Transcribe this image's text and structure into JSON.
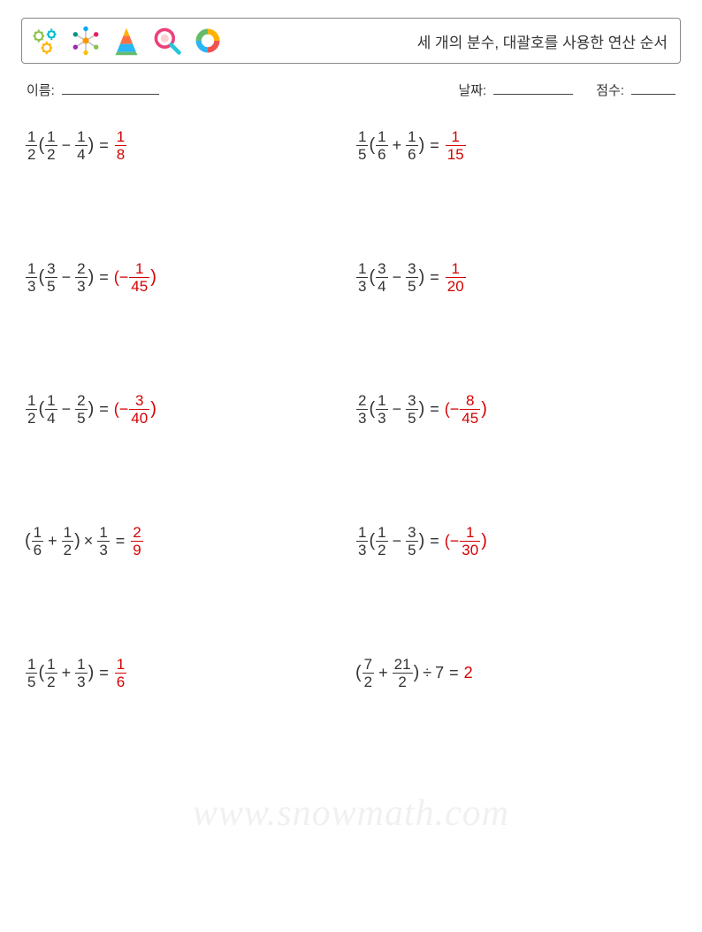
{
  "header": {
    "title": "세 개의 분수, 대괄호를 사용한 연산 순서"
  },
  "meta": {
    "name_label": "이름:",
    "date_label": "날짜:",
    "score_label": "점수:"
  },
  "colors": {
    "text": "#333333",
    "answer": "#d40000",
    "border": "#888888",
    "watermark": "rgba(0,0,0,0.06)"
  },
  "icons": {
    "gears": {
      "c1": "#8bc34a",
      "c2": "#00bcd4",
      "c3": "#ffb300"
    },
    "network": {
      "center": "#ff9800",
      "dots": [
        "#03a9f4",
        "#e91e63",
        "#8bc34a",
        "#ffc107",
        "#9c27b0",
        "#009688"
      ]
    },
    "triangle": {
      "rows": [
        "#ffb300",
        "#ff7043",
        "#29b6f6",
        "#66bb6a"
      ]
    },
    "magnifier": {
      "ring": "#ec407a",
      "handle": "#26c6da"
    },
    "donut": {
      "segs": [
        "#ffb300",
        "#ef5350",
        "#29b6f6",
        "#66bb6a"
      ]
    }
  },
  "problems": [
    [
      {
        "type": "frac",
        "n": "1",
        "d": "2"
      },
      {
        "type": "text",
        "v": "("
      },
      {
        "type": "frac",
        "n": "1",
        "d": "2"
      },
      {
        "type": "op",
        "v": "−"
      },
      {
        "type": "frac",
        "n": "1",
        "d": "4"
      },
      {
        "type": "text",
        "v": ")"
      },
      {
        "type": "eq",
        "v": "="
      },
      {
        "type": "ans",
        "parts": [
          {
            "type": "frac",
            "n": "1",
            "d": "8"
          }
        ]
      }
    ],
    [
      {
        "type": "frac",
        "n": "1",
        "d": "5"
      },
      {
        "type": "text",
        "v": "("
      },
      {
        "type": "frac",
        "n": "1",
        "d": "6"
      },
      {
        "type": "op",
        "v": "+"
      },
      {
        "type": "frac",
        "n": "1",
        "d": "6"
      },
      {
        "type": "text",
        "v": ")"
      },
      {
        "type": "eq",
        "v": "="
      },
      {
        "type": "ans",
        "parts": [
          {
            "type": "frac",
            "n": "1",
            "d": "15"
          }
        ]
      }
    ],
    [
      {
        "type": "frac",
        "n": "1",
        "d": "3"
      },
      {
        "type": "text",
        "v": "("
      },
      {
        "type": "frac",
        "n": "3",
        "d": "5"
      },
      {
        "type": "op",
        "v": "−"
      },
      {
        "type": "frac",
        "n": "2",
        "d": "3"
      },
      {
        "type": "text",
        "v": ")"
      },
      {
        "type": "eq",
        "v": "="
      },
      {
        "type": "ans",
        "parts": [
          {
            "type": "text",
            "v": "(−"
          },
          {
            "type": "frac",
            "n": "1",
            "d": "45"
          },
          {
            "type": "text",
            "v": ")"
          }
        ]
      }
    ],
    [
      {
        "type": "frac",
        "n": "1",
        "d": "3"
      },
      {
        "type": "text",
        "v": "("
      },
      {
        "type": "frac",
        "n": "3",
        "d": "4"
      },
      {
        "type": "op",
        "v": "−"
      },
      {
        "type": "frac",
        "n": "3",
        "d": "5"
      },
      {
        "type": "text",
        "v": ")"
      },
      {
        "type": "eq",
        "v": "="
      },
      {
        "type": "ans",
        "parts": [
          {
            "type": "frac",
            "n": "1",
            "d": "20"
          }
        ]
      }
    ],
    [
      {
        "type": "frac",
        "n": "1",
        "d": "2"
      },
      {
        "type": "text",
        "v": "("
      },
      {
        "type": "frac",
        "n": "1",
        "d": "4"
      },
      {
        "type": "op",
        "v": "−"
      },
      {
        "type": "frac",
        "n": "2",
        "d": "5"
      },
      {
        "type": "text",
        "v": ")"
      },
      {
        "type": "eq",
        "v": "="
      },
      {
        "type": "ans",
        "parts": [
          {
            "type": "text",
            "v": "(−"
          },
          {
            "type": "frac",
            "n": "3",
            "d": "40"
          },
          {
            "type": "text",
            "v": ")"
          }
        ]
      }
    ],
    [
      {
        "type": "frac",
        "n": "2",
        "d": "3"
      },
      {
        "type": "text",
        "v": "("
      },
      {
        "type": "frac",
        "n": "1",
        "d": "3"
      },
      {
        "type": "op",
        "v": "−"
      },
      {
        "type": "frac",
        "n": "3",
        "d": "5"
      },
      {
        "type": "text",
        "v": ")"
      },
      {
        "type": "eq",
        "v": "="
      },
      {
        "type": "ans",
        "parts": [
          {
            "type": "text",
            "v": "(−"
          },
          {
            "type": "frac",
            "n": "8",
            "d": "45"
          },
          {
            "type": "text",
            "v": ")"
          }
        ]
      }
    ],
    [
      {
        "type": "text",
        "v": "("
      },
      {
        "type": "frac",
        "n": "1",
        "d": "6"
      },
      {
        "type": "op",
        "v": "+"
      },
      {
        "type": "frac",
        "n": "1",
        "d": "2"
      },
      {
        "type": "text",
        "v": ")"
      },
      {
        "type": "op",
        "v": "×"
      },
      {
        "type": "frac",
        "n": "1",
        "d": "3"
      },
      {
        "type": "eq",
        "v": "="
      },
      {
        "type": "ans",
        "parts": [
          {
            "type": "frac",
            "n": "2",
            "d": "9"
          }
        ]
      }
    ],
    [
      {
        "type": "frac",
        "n": "1",
        "d": "3"
      },
      {
        "type": "text",
        "v": "("
      },
      {
        "type": "frac",
        "n": "1",
        "d": "2"
      },
      {
        "type": "op",
        "v": "−"
      },
      {
        "type": "frac",
        "n": "3",
        "d": "5"
      },
      {
        "type": "text",
        "v": ")"
      },
      {
        "type": "eq",
        "v": "="
      },
      {
        "type": "ans",
        "parts": [
          {
            "type": "text",
            "v": "(−"
          },
          {
            "type": "frac",
            "n": "1",
            "d": "30"
          },
          {
            "type": "text",
            "v": ")"
          }
        ]
      }
    ],
    [
      {
        "type": "frac",
        "n": "1",
        "d": "5"
      },
      {
        "type": "text",
        "v": "("
      },
      {
        "type": "frac",
        "n": "1",
        "d": "2"
      },
      {
        "type": "op",
        "v": "+"
      },
      {
        "type": "frac",
        "n": "1",
        "d": "3"
      },
      {
        "type": "text",
        "v": ")"
      },
      {
        "type": "eq",
        "v": "="
      },
      {
        "type": "ans",
        "parts": [
          {
            "type": "frac",
            "n": "1",
            "d": "6"
          }
        ]
      }
    ],
    [
      {
        "type": "text",
        "v": "("
      },
      {
        "type": "frac",
        "n": "7",
        "d": "2"
      },
      {
        "type": "op",
        "v": "+"
      },
      {
        "type": "frac",
        "n": "21",
        "d": "2"
      },
      {
        "type": "text",
        "v": ")"
      },
      {
        "type": "op",
        "v": "÷"
      },
      {
        "type": "text",
        "v": "7"
      },
      {
        "type": "eq",
        "v": "="
      },
      {
        "type": "ans",
        "parts": [
          {
            "type": "text",
            "v": "2"
          }
        ]
      }
    ]
  ],
  "watermark": "www.snowmath.com"
}
